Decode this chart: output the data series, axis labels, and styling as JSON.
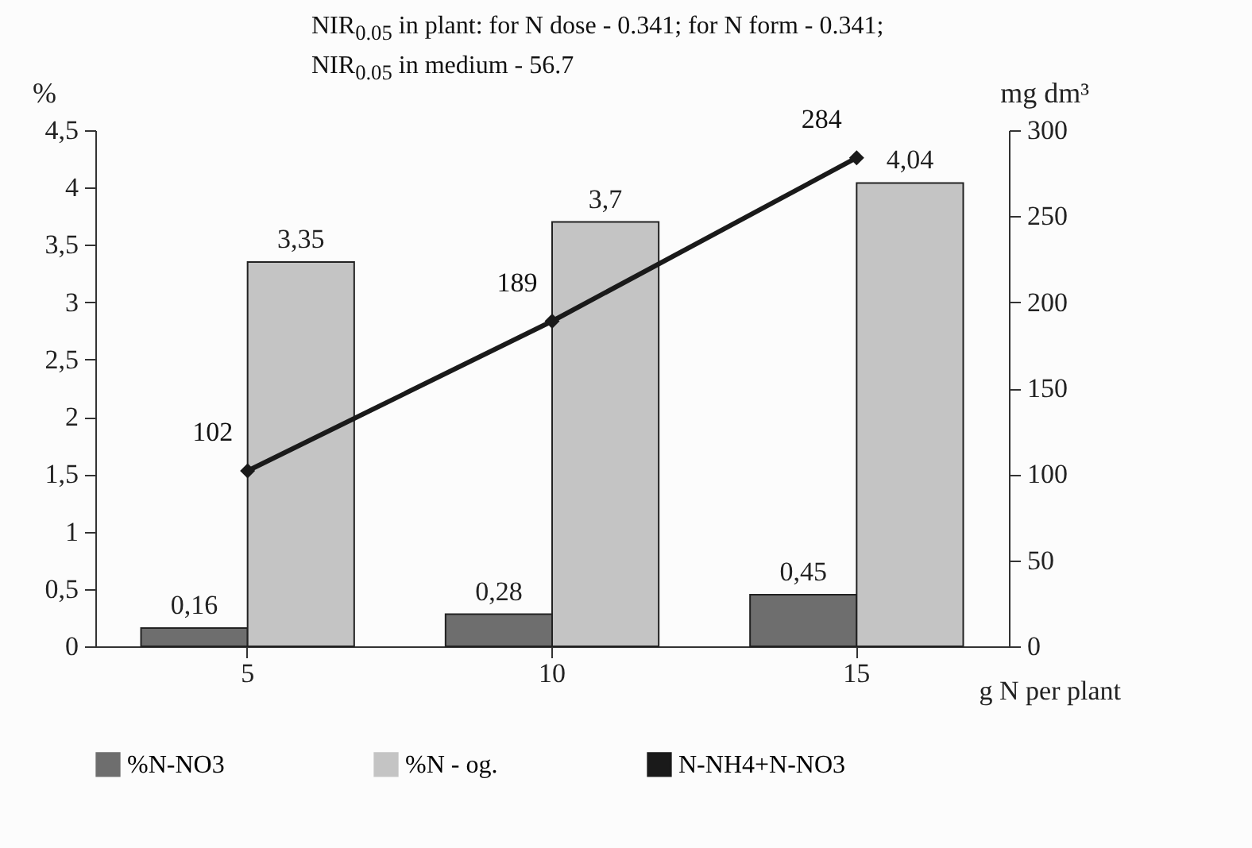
{
  "chart_data": {
    "type": "bar",
    "annotations": [
      "NIR$_{0.05}$ in plant: for  N dose  - 0.341; for N form - 0.341;",
      "NIR$_{0.05}$ in medium - 56.7"
    ],
    "xlabel": "g N per plant",
    "ylabel": "%",
    "y2label": "mg dm³",
    "categories": [
      "5",
      "10",
      "15"
    ],
    "series": [
      {
        "name": "%N-NO3",
        "color": "#6e6e6e",
        "values": [
          0.16,
          0.28,
          0.45
        ],
        "value_labels": [
          "0,16",
          "0,28",
          "0,45"
        ]
      },
      {
        "name": "%N - og.",
        "color": "#c4c4c4",
        "values": [
          3.35,
          3.7,
          4.04
        ],
        "value_labels": [
          "3,35",
          "3,7",
          "4,04"
        ]
      },
      {
        "name": "N-NH4+N-NO3",
        "type": "line",
        "axis": "y2",
        "color": "#1a1a1a",
        "marker": "diamond",
        "line_style": "solid",
        "values": [
          102,
          189,
          284
        ],
        "value_labels": [
          "102",
          "189",
          "284"
        ]
      }
    ],
    "ylim": [
      0,
      4.5
    ],
    "yticks": [
      {
        "value": 0,
        "label": "0"
      },
      {
        "value": 0.5,
        "label": "0,5"
      },
      {
        "value": 1,
        "label": "1"
      },
      {
        "value": 1.5,
        "label": "1,5"
      },
      {
        "value": 2,
        "label": "2"
      },
      {
        "value": 2.5,
        "label": "2,5"
      },
      {
        "value": 3,
        "label": "3"
      },
      {
        "value": 3.5,
        "label": "3,5"
      },
      {
        "value": 4,
        "label": "4"
      },
      {
        "value": 4.5,
        "label": "4,5"
      }
    ],
    "y2lim": [
      0,
      300
    ],
    "y2ticks": [
      0,
      50,
      100,
      150,
      200,
      250,
      300
    ],
    "grid": false,
    "legend": "bottom"
  }
}
